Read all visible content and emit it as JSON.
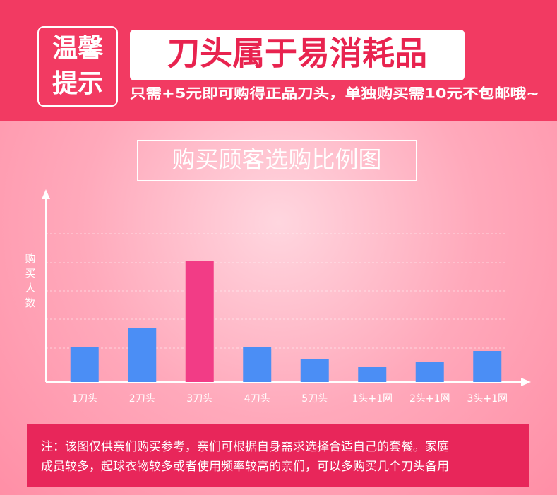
{
  "header": {
    "badge": [
      "温馨",
      "提示"
    ],
    "headline": "刀头属于易消耗品",
    "subline": "只需+5元即可购得正品刀头，单独购买需10元不包邮哦~"
  },
  "chart_data": {
    "type": "bar",
    "title": "购买顾客选购比例图",
    "y_label": "购买人数",
    "categories": [
      "1刀头",
      "2刀头",
      "3刀头",
      "4刀头",
      "5刀头",
      "1头+1网",
      "2头+1网",
      "3头+1网"
    ],
    "values": [
      50,
      77,
      171,
      50,
      32,
      21,
      29,
      44
    ],
    "colors": [
      "#4b8ef5",
      "#4b8ef5",
      "#f23c86",
      "#4b8ef5",
      "#4b8ef5",
      "#4b8ef5",
      "#4b8ef5",
      "#4b8ef5"
    ],
    "ylim": [
      0,
      269
    ],
    "yticks": [
      48,
      89,
      129,
      169,
      210
    ],
    "grid": true
  },
  "note": [
    "注：该图仅供亲们购买参考，亲们可根据自身需求选择合适自己的套餐。家庭",
    "成员较多，起球衣物较多或者使用频率较高的亲们，可以多购买几个刀头备用"
  ]
}
